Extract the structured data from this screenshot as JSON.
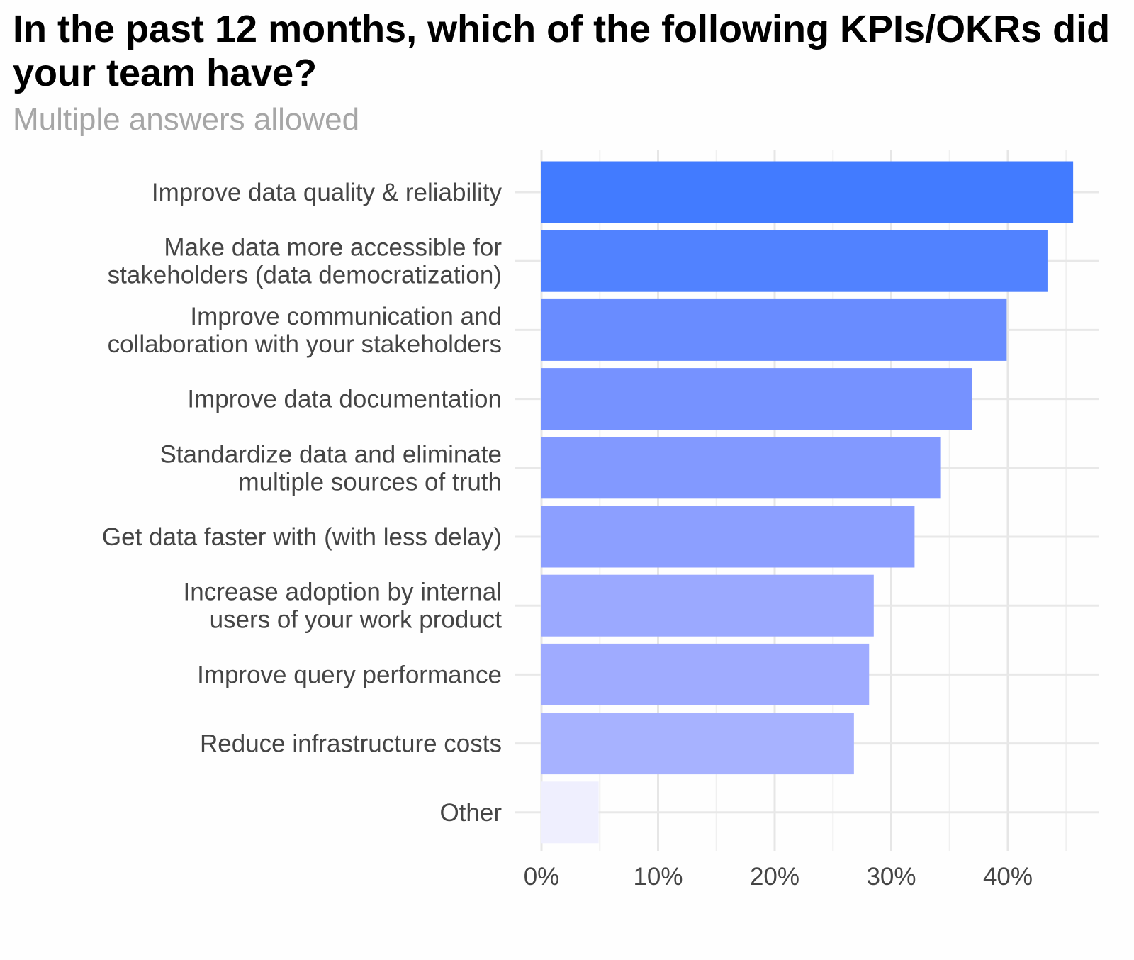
{
  "chart_data": {
    "type": "bar",
    "orientation": "horizontal",
    "title": "In the past 12 months, which of the following KPIs/OKRs did your team have?",
    "subtitle": "Multiple answers allowed",
    "categories": [
      [
        "Improve data quality & reliability"
      ],
      [
        "Make data more accessible for",
        "stakeholders (data democratization)"
      ],
      [
        "Improve communication and",
        "collaboration with your stakeholders"
      ],
      [
        "Improve data documentation"
      ],
      [
        "Standardize data and eliminate",
        "multiple sources of truth"
      ],
      [
        "Get data faster with (with less delay)"
      ],
      [
        "Increase adoption by internal",
        "users of your work product"
      ],
      [
        "Improve query performance"
      ],
      [
        "Reduce infrastructure costs"
      ],
      [
        "Other"
      ]
    ],
    "values": [
      45.6,
      43.4,
      39.9,
      36.9,
      34.2,
      32.0,
      28.5,
      28.1,
      26.8,
      4.9
    ],
    "colors": [
      "#427bff",
      "#5182ff",
      "#698cff",
      "#7692ff",
      "#8299ff",
      "#8c9fff",
      "#9ba9ff",
      "#9fabff",
      "#a7b2ff",
      "#efeffe"
    ],
    "xlim": [
      0,
      48
    ],
    "xticks": [
      0,
      10,
      20,
      30,
      40
    ],
    "xtick_labels": [
      "0%",
      "10%",
      "20%",
      "30%",
      "40%"
    ],
    "xlabel": "",
    "ylabel": "",
    "grid": true,
    "legend": "none"
  }
}
